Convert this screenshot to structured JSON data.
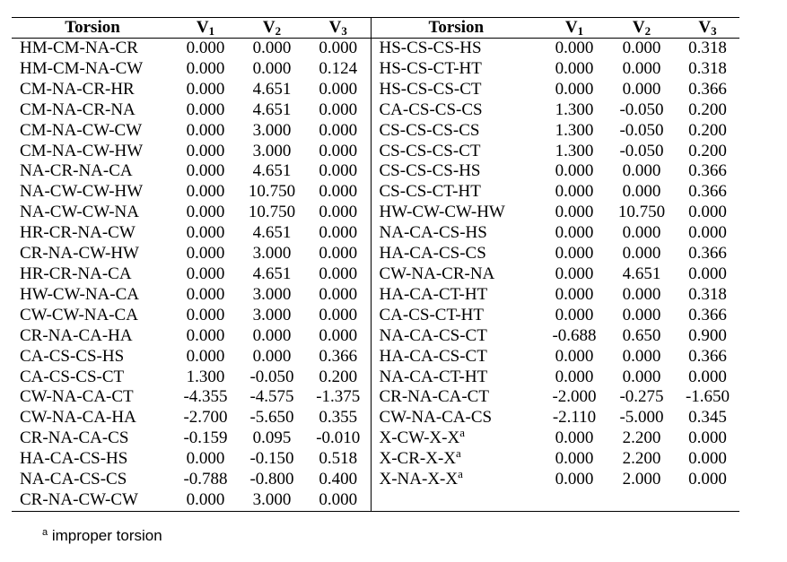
{
  "table": {
    "headers": {
      "torsion": "Torsion",
      "v": "V",
      "sub1": "1",
      "sub2": "2",
      "sub3": "3"
    },
    "left_rows": [
      [
        "HM-CM-NA-CR",
        "0.000",
        "0.000",
        "0.000"
      ],
      [
        "HM-CM-NA-CW",
        "0.000",
        "0.000",
        "0.124"
      ],
      [
        "CM-NA-CR-HR",
        "0.000",
        "4.651",
        "0.000"
      ],
      [
        "CM-NA-CR-NA",
        "0.000",
        "4.651",
        "0.000"
      ],
      [
        "CM-NA-CW-CW",
        "0.000",
        "3.000",
        "0.000"
      ],
      [
        "CM-NA-CW-HW",
        "0.000",
        "3.000",
        "0.000"
      ],
      [
        "NA-CR-NA-CA",
        "0.000",
        "4.651",
        "0.000"
      ],
      [
        "NA-CW-CW-HW",
        "0.000",
        "10.750",
        "0.000"
      ],
      [
        "NA-CW-CW-NA",
        "0.000",
        "10.750",
        "0.000"
      ],
      [
        "HR-CR-NA-CW",
        "0.000",
        "4.651",
        "0.000"
      ],
      [
        "CR-NA-CW-HW",
        "0.000",
        "3.000",
        "0.000"
      ],
      [
        "HR-CR-NA-CA",
        "0.000",
        "4.651",
        "0.000"
      ],
      [
        "HW-CW-NA-CA",
        "0.000",
        "3.000",
        "0.000"
      ],
      [
        "CW-CW-NA-CA",
        "0.000",
        "3.000",
        "0.000"
      ],
      [
        "CR-NA-CA-HA",
        "0.000",
        "0.000",
        "0.000"
      ],
      [
        "CA-CS-CS-HS",
        "0.000",
        "0.000",
        "0.366"
      ],
      [
        "CA-CS-CS-CT",
        "1.300",
        "-0.050",
        "0.200"
      ],
      [
        "CW-NA-CA-CT",
        "-4.355",
        "-4.575",
        "-1.375"
      ],
      [
        "CW-NA-CA-HA",
        "-2.700",
        "-5.650",
        "0.355"
      ],
      [
        "CR-NA-CA-CS",
        "-0.159",
        "0.095",
        "-0.010"
      ],
      [
        "HA-CA-CS-HS",
        "0.000",
        "-0.150",
        "0.518"
      ],
      [
        "NA-CA-CS-CS",
        "-0.788",
        "-0.800",
        "0.400"
      ],
      [
        "CR-NA-CW-CW",
        "0.000",
        "3.000",
        "0.000"
      ]
    ],
    "right_rows": [
      [
        "HS-CS-CS-HS",
        "0.000",
        "0.000",
        "0.318"
      ],
      [
        "HS-CS-CT-HT",
        "0.000",
        "0.000",
        "0.318"
      ],
      [
        "HS-CS-CS-CT",
        "0.000",
        "0.000",
        "0.366"
      ],
      [
        "CA-CS-CS-CS",
        "1.300",
        "-0.050",
        "0.200"
      ],
      [
        "CS-CS-CS-CS",
        "1.300",
        "-0.050",
        "0.200"
      ],
      [
        "CS-CS-CS-CT",
        "1.300",
        "-0.050",
        "0.200"
      ],
      [
        "CS-CS-CS-HS",
        "0.000",
        "0.000",
        "0.366"
      ],
      [
        "CS-CS-CT-HT",
        "0.000",
        "0.000",
        "0.366"
      ],
      [
        "HW-CW-CW-HW",
        "0.000",
        "10.750",
        "0.000"
      ],
      [
        "NA-CA-CS-HS",
        "0.000",
        "0.000",
        "0.000"
      ],
      [
        "HA-CA-CS-CS",
        "0.000",
        "0.000",
        "0.366"
      ],
      [
        "CW-NA-CR-NA",
        "0.000",
        "4.651",
        "0.000"
      ],
      [
        "HA-CA-CT-HT",
        "0.000",
        "0.000",
        "0.318"
      ],
      [
        "CA-CS-CT-HT",
        "0.000",
        "0.000",
        "0.366"
      ],
      [
        "NA-CA-CS-CT",
        "-0.688",
        "0.650",
        "0.900"
      ],
      [
        "HA-CA-CS-CT",
        "0.000",
        "0.000",
        "0.366"
      ],
      [
        "NA-CA-CT-HT",
        "0.000",
        "0.000",
        "0.000"
      ],
      [
        "CR-NA-CA-CT",
        "-2.000",
        "-0.275",
        "-1.650"
      ],
      [
        "CW-NA-CA-CS",
        "-2.110",
        "-5.000",
        "0.345"
      ],
      [
        "X-CW-X-X",
        "0.000",
        "2.200",
        "0.000"
      ],
      [
        "X-CR-X-X",
        "0.000",
        "2.200",
        "0.000"
      ],
      [
        "X-NA-X-X",
        "0.000",
        "2.000",
        "0.000"
      ]
    ],
    "right_superscripts": {
      "19": "a",
      "20": "a",
      "21": "a"
    }
  },
  "footnote": {
    "marker": "a",
    "text": " improper torsion"
  }
}
